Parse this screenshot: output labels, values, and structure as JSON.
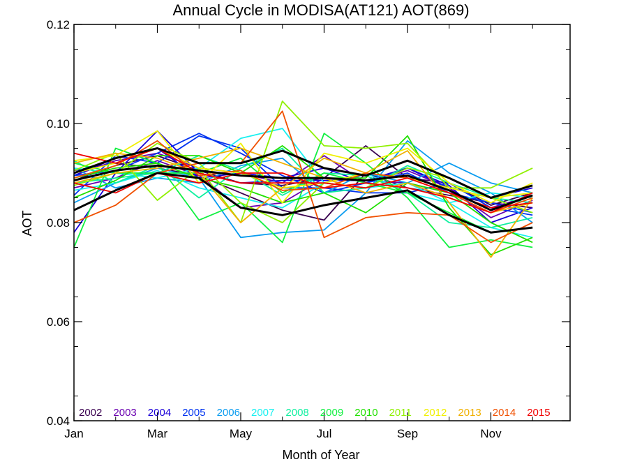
{
  "chart_data": {
    "type": "line",
    "title": "Annual Cycle in MODISA(AT121) AOT(869)",
    "xlabel": "Month of Year",
    "ylabel": "AOT",
    "x": [
      1,
      2,
      3,
      4,
      5,
      6,
      7,
      8,
      9,
      10,
      11,
      12
    ],
    "xlim": [
      1,
      12.9
    ],
    "ylim": [
      0.04,
      0.12
    ],
    "xticks": [
      {
        "value": 1,
        "label": "Jan"
      },
      {
        "value": 3,
        "label": "Mar"
      },
      {
        "value": 5,
        "label": "May"
      },
      {
        "value": 7,
        "label": "Jul"
      },
      {
        "value": 9,
        "label": "Sep"
      },
      {
        "value": 11,
        "label": "Nov"
      }
    ],
    "yticks": [
      {
        "value": 0.04,
        "label": "0.04"
      },
      {
        "value": 0.06,
        "label": "0.06"
      },
      {
        "value": 0.08,
        "label": "0.08"
      },
      {
        "value": 0.1,
        "label": "0.10"
      },
      {
        "value": 0.12,
        "label": "0.12"
      }
    ],
    "grid": false,
    "legend_placement": "bottom",
    "legend": [
      {
        "label": "2002",
        "color": "#3a0050"
      },
      {
        "label": "2003",
        "color": "#6a00b0"
      },
      {
        "label": "2004",
        "color": "#1a00d8"
      },
      {
        "label": "2005",
        "color": "#0033f0"
      },
      {
        "label": "2006",
        "color": "#0a9cf0"
      },
      {
        "label": "2007",
        "color": "#18f0f0"
      },
      {
        "label": "2008",
        "color": "#10f0a0"
      },
      {
        "label": "2009",
        "color": "#10f040"
      },
      {
        "label": "2010",
        "color": "#20e000"
      },
      {
        "label": "2011",
        "color": "#90f000"
      },
      {
        "label": "2012",
        "color": "#f0f000"
      },
      {
        "label": "2013",
        "color": "#f0b000"
      },
      {
        "label": "2014",
        "color": "#f05000"
      },
      {
        "label": "2015",
        "color": "#f00000"
      }
    ],
    "series": [
      {
        "color": "#3a0050",
        "values": [
          0.0885,
          0.0915,
          0.0935,
          0.0905,
          0.088,
          0.0875,
          0.089,
          0.0955,
          0.089,
          0.088,
          0.0835,
          0.086
        ]
      },
      {
        "color": "#3a0050",
        "values": [
          0.0905,
          0.092,
          0.091,
          0.0895,
          0.086,
          0.0825,
          0.0805,
          0.09,
          0.087,
          0.0855,
          0.084,
          0.083
        ]
      },
      {
        "color": "#6a00b0",
        "values": [
          0.087,
          0.089,
          0.0925,
          0.0895,
          0.083,
          0.084,
          0.089,
          0.0885,
          0.088,
          0.086,
          0.083,
          0.0855
        ]
      },
      {
        "color": "#6a00b0",
        "values": [
          0.0895,
          0.0925,
          0.094,
          0.091,
          0.09,
          0.088,
          0.0935,
          0.088,
          0.0905,
          0.087,
          0.081,
          0.0845
        ]
      },
      {
        "color": "#1a00d8",
        "values": [
          0.078,
          0.09,
          0.0985,
          0.09,
          0.088,
          0.0885,
          0.0885,
          0.0885,
          0.091,
          0.0875,
          0.08,
          0.083
        ]
      },
      {
        "color": "#1a00d8",
        "values": [
          0.0895,
          0.093,
          0.095,
          0.089,
          0.09,
          0.089,
          0.091,
          0.088,
          0.091,
          0.087,
          0.085,
          0.087
        ]
      },
      {
        "color": "#0033f0",
        "values": [
          0.0895,
          0.0905,
          0.094,
          0.098,
          0.094,
          0.0895,
          0.086,
          0.088,
          0.09,
          0.086,
          0.084,
          0.082
        ]
      },
      {
        "color": "#0033f0",
        "values": [
          0.0855,
          0.0935,
          0.092,
          0.0975,
          0.095,
          0.087,
          0.087,
          0.086,
          0.086,
          0.088,
          0.083,
          0.0815
        ]
      },
      {
        "color": "#0a9cf0",
        "values": [
          0.084,
          0.088,
          0.091,
          0.089,
          0.077,
          0.078,
          0.0785,
          0.086,
          0.0965,
          0.09,
          0.086,
          0.08
        ]
      },
      {
        "color": "#0a9cf0",
        "values": [
          0.091,
          0.087,
          0.089,
          0.088,
          0.0915,
          0.093,
          0.086,
          0.09,
          0.088,
          0.092,
          0.088,
          0.086
        ]
      },
      {
        "color": "#18f0f0",
        "values": [
          0.0865,
          0.088,
          0.0905,
          0.087,
          0.085,
          0.083,
          0.088,
          0.09,
          0.086,
          0.084,
          0.079,
          0.077
        ]
      },
      {
        "color": "#18f0f0",
        "values": [
          0.091,
          0.09,
          0.089,
          0.091,
          0.097,
          0.099,
          0.088,
          0.087,
          0.088,
          0.084,
          0.086,
          0.085
        ]
      },
      {
        "color": "#10f0a0",
        "values": [
          0.088,
          0.089,
          0.09,
          0.0935,
          0.0905,
          0.0855,
          0.09,
          0.0895,
          0.086,
          0.08,
          0.079,
          0.081
        ]
      },
      {
        "color": "#10f0a0",
        "values": [
          0.0925,
          0.088,
          0.0915,
          0.085,
          0.091,
          0.095,
          0.086,
          0.087,
          0.0915,
          0.088,
          0.085,
          0.084
        ]
      },
      {
        "color": "#10f040",
        "values": [
          0.075,
          0.095,
          0.092,
          0.0805,
          0.084,
          0.076,
          0.098,
          0.092,
          0.085,
          0.075,
          0.0765,
          0.075
        ]
      },
      {
        "color": "#10f040",
        "values": [
          0.092,
          0.09,
          0.09,
          0.09,
          0.093,
          0.086,
          0.09,
          0.088,
          0.086,
          0.082,
          0.078,
          0.079
        ]
      },
      {
        "color": "#20e000",
        "values": [
          0.085,
          0.0885,
          0.0935,
          0.0935,
          0.09,
          0.0955,
          0.089,
          0.089,
          0.0975,
          0.083,
          0.0735,
          0.077
        ]
      },
      {
        "color": "#20e000",
        "values": [
          0.089,
          0.091,
          0.092,
          0.089,
          0.087,
          0.084,
          0.086,
          0.082,
          0.088,
          0.086,
          0.08,
          0.076
        ]
      },
      {
        "color": "#90f000",
        "values": [
          0.0905,
          0.094,
          0.0845,
          0.091,
          0.08,
          0.1045,
          0.0955,
          0.095,
          0.096,
          0.087,
          0.087,
          0.091
        ]
      },
      {
        "color": "#90f000",
        "values": [
          0.0875,
          0.09,
          0.096,
          0.092,
          0.084,
          0.08,
          0.088,
          0.087,
          0.091,
          0.089,
          0.085,
          0.082
        ]
      },
      {
        "color": "#f0f000",
        "values": [
          0.0925,
          0.0935,
          0.0985,
          0.088,
          0.096,
          0.084,
          0.094,
          0.092,
          0.095,
          0.088,
          0.084,
          0.088
        ]
      },
      {
        "color": "#f0f000",
        "values": [
          0.09,
          0.092,
          0.095,
          0.091,
          0.09,
          0.087,
          0.088,
          0.09,
          0.089,
          0.087,
          0.085,
          0.086
        ]
      },
      {
        "color": "#f0b000",
        "values": [
          0.092,
          0.094,
          0.093,
          0.09,
          0.08,
          0.087,
          0.093,
          0.09,
          0.0945,
          0.084,
          0.073,
          0.085
        ]
      },
      {
        "color": "#f0b000",
        "values": [
          0.088,
          0.09,
          0.091,
          0.093,
          0.095,
          0.092,
          0.089,
          0.086,
          0.088,
          0.085,
          0.082,
          0.084
        ]
      },
      {
        "color": "#f05000",
        "values": [
          0.08,
          0.0835,
          0.09,
          0.092,
          0.092,
          0.1025,
          0.077,
          0.081,
          0.082,
          0.0815,
          0.076,
          0.08
        ]
      },
      {
        "color": "#f05000",
        "values": [
          0.089,
          0.0915,
          0.0965,
          0.0895,
          0.0905,
          0.0865,
          0.087,
          0.09,
          0.089,
          0.086,
          0.082,
          0.085
        ]
      },
      {
        "color": "#f00000",
        "values": [
          0.094,
          0.092,
          0.095,
          0.09,
          0.088,
          0.088,
          0.088,
          0.087,
          0.089,
          0.086,
          0.083,
          0.084
        ]
      },
      {
        "color": "#f00000",
        "values": [
          0.088,
          0.086,
          0.09,
          0.088,
          0.09,
          0.09,
          0.087,
          0.088,
          0.087,
          0.085,
          0.082,
          0.086
        ]
      },
      {
        "color": "#000000",
        "values": [
          0.0885,
          0.0905,
          0.0915,
          0.0905,
          0.0895,
          0.089,
          0.089,
          0.0885,
          0.0895,
          0.0865,
          0.0825,
          0.0855
        ]
      },
      {
        "color": "#000000",
        "values": [
          0.09,
          0.093,
          0.095,
          0.092,
          0.092,
          0.0945,
          0.091,
          0.0895,
          0.0925,
          0.089,
          0.085,
          0.0875
        ]
      },
      {
        "color": "#000000",
        "values": [
          0.0825,
          0.0865,
          0.09,
          0.089,
          0.083,
          0.0815,
          0.0835,
          0.085,
          0.0865,
          0.0815,
          0.078,
          0.079
        ]
      }
    ]
  }
}
